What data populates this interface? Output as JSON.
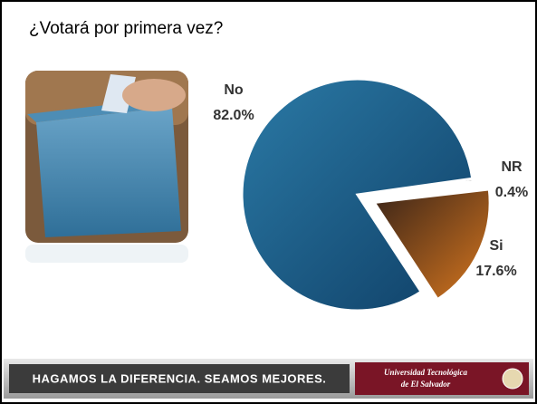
{
  "chart_data": {
    "type": "pie",
    "title": "¿Votará por primera vez?",
    "categories": [
      "No",
      "Si",
      "NR"
    ],
    "values": [
      82.0,
      17.6,
      0.4
    ],
    "value_labels": [
      "82.0%",
      "17.6%",
      "0.4%"
    ],
    "colors": [
      "#1d5f8a",
      "#b8601a",
      "#2a2a2a"
    ],
    "exploded": [
      false,
      true,
      false
    ]
  },
  "footer": {
    "slogan": "HAGAMOS LA DIFERENCIA. SEAMOS MEJORES.",
    "logo_line1": "Universidad Tecnológica",
    "logo_line2": "de El Salvador"
  }
}
